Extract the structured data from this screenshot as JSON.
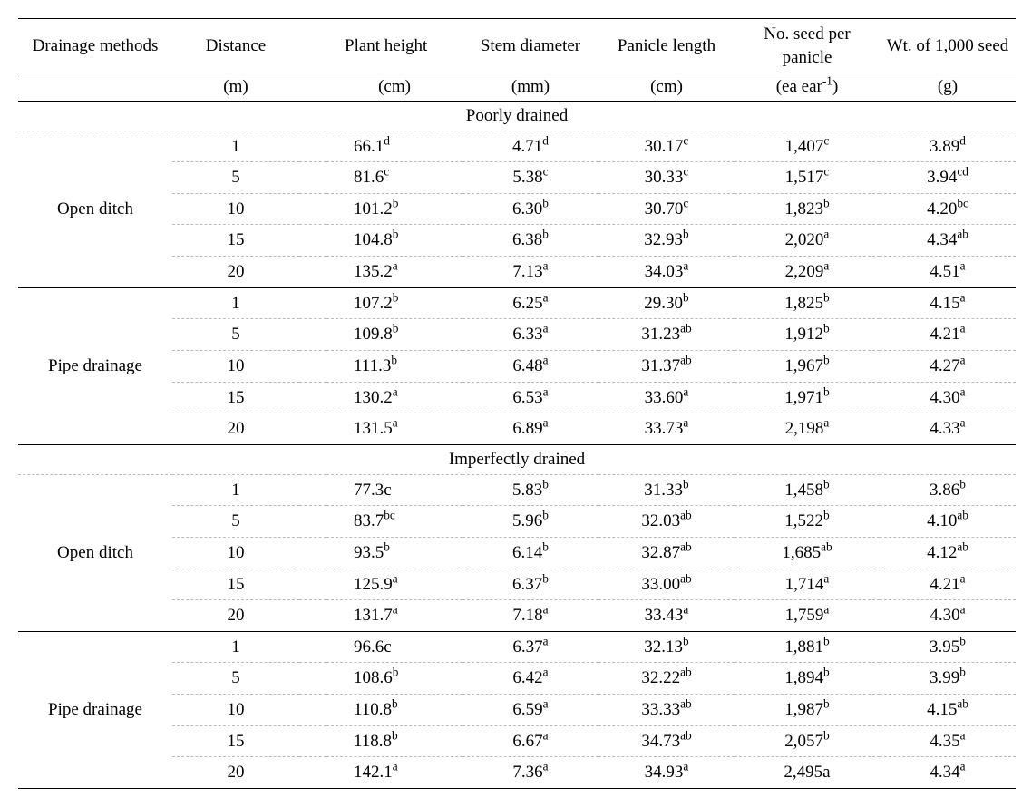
{
  "header": {
    "drainage_methods": "Drainage methods",
    "distance": "Distance",
    "plant_height": "Plant height",
    "stem_diameter": "Stem diameter",
    "panicle_length": "Panicle length",
    "no_seed": "No. seed per panicle",
    "wt_seed": "Wt. of 1,000 seed"
  },
  "units": {
    "distance": "(m)",
    "plant_height": "(cm)",
    "stem_diameter": "(mm)",
    "panicle_length": "(cm)",
    "no_seed_pre": "(ea ear",
    "no_seed_exp": "-1",
    "no_seed_post": ")",
    "wt_seed": "(g)"
  },
  "sections": {
    "poorly": "Poorly drained",
    "imperfectly": "Imperfectly drained"
  },
  "methods": {
    "open": "Open ditch",
    "pipe": "Pipe drainage"
  },
  "rows": {
    "p_open": [
      {
        "d": "1",
        "ph": "66.1",
        "ph_s": "d",
        "sd": "4.71",
        "sd_s": "d",
        "pl": "30.17",
        "pl_s": "c",
        "ns": "1,407",
        "ns_s": "c",
        "wt": "3.89",
        "wt_s": "d"
      },
      {
        "d": "5",
        "ph": "81.6",
        "ph_s": "c",
        "sd": "5.38",
        "sd_s": "c",
        "pl": "30.33",
        "pl_s": "c",
        "ns": "1,517",
        "ns_s": "c",
        "wt": "3.94",
        "wt_s": "cd"
      },
      {
        "d": "10",
        "ph": "101.2",
        "ph_s": "b",
        "sd": "6.30",
        "sd_s": "b",
        "pl": "30.70",
        "pl_s": "c",
        "ns": "1,823",
        "ns_s": "b",
        "wt": "4.20",
        "wt_s": "bc"
      },
      {
        "d": "15",
        "ph": "104.8",
        "ph_s": "b",
        "sd": "6.38",
        "sd_s": "b",
        "pl": "32.93",
        "pl_s": "b",
        "ns": "2,020",
        "ns_s": "a",
        "wt": "4.34",
        "wt_s": "ab"
      },
      {
        "d": "20",
        "ph": "135.2",
        "ph_s": "a",
        "sd": "7.13",
        "sd_s": "a",
        "pl": "34.03",
        "pl_s": "a",
        "ns": "2,209",
        "ns_s": "a",
        "wt": "4.51",
        "wt_s": "a"
      }
    ],
    "p_pipe": [
      {
        "d": "1",
        "ph": "107.2",
        "ph_s": "b",
        "sd": "6.25",
        "sd_s": "a",
        "pl": "29.30",
        "pl_s": "b",
        "ns": "1,825",
        "ns_s": "b",
        "wt": "4.15",
        "wt_s": "a"
      },
      {
        "d": "5",
        "ph": "109.8",
        "ph_s": "b",
        "sd": "6.33",
        "sd_s": "a",
        "pl": "31.23",
        "pl_s": "ab",
        "ns": "1,912",
        "ns_s": "b",
        "wt": "4.21",
        "wt_s": "a"
      },
      {
        "d": "10",
        "ph": "111.3",
        "ph_s": "b",
        "sd": "6.48",
        "sd_s": "a",
        "pl": "31.37",
        "pl_s": "ab",
        "ns": "1,967",
        "ns_s": "b",
        "wt": "4.27",
        "wt_s": "a"
      },
      {
        "d": "15",
        "ph": "130.2",
        "ph_s": "a",
        "sd": "6.53",
        "sd_s": "a",
        "pl": "33.60",
        "pl_s": "a",
        "ns": "1,971",
        "ns_s": "b",
        "wt": "4.30",
        "wt_s": "a"
      },
      {
        "d": "20",
        "ph": "131.5",
        "ph_s": "a",
        "sd": "6.89",
        "sd_s": "a",
        "pl": "33.73",
        "pl_s": "a",
        "ns": "2,198",
        "ns_s": "a",
        "wt": "4.33",
        "wt_s": "a"
      }
    ],
    "i_open": [
      {
        "d": "1",
        "ph": "77.3c",
        "ph_s": "",
        "sd": "5.83",
        "sd_s": "b",
        "pl": "31.33",
        "pl_s": "b",
        "ns": "1,458",
        "ns_s": "b",
        "wt": "3.86",
        "wt_s": "b"
      },
      {
        "d": "5",
        "ph": "83.7",
        "ph_s": "bc",
        "sd": "5.96",
        "sd_s": "b",
        "pl": "32.03",
        "pl_s": "ab",
        "ns": "1,522",
        "ns_s": "b",
        "wt": "4.10",
        "wt_s": "ab"
      },
      {
        "d": "10",
        "ph": "93.5",
        "ph_s": "b",
        "sd": "6.14",
        "sd_s": "b",
        "pl": "32.87",
        "pl_s": "ab",
        "ns": "1,685",
        "ns_s": "ab",
        "wt": "4.12",
        "wt_s": "ab"
      },
      {
        "d": "15",
        "ph": "125.9",
        "ph_s": "a",
        "sd": "6.37",
        "sd_s": "b",
        "pl": "33.00",
        "pl_s": "ab",
        "ns": "1,714",
        "ns_s": "a",
        "wt": "4.21",
        "wt_s": "a"
      },
      {
        "d": "20",
        "ph": "131.7",
        "ph_s": "a",
        "sd": "7.18",
        "sd_s": "a",
        "pl": "33.43",
        "pl_s": "a",
        "ns": "1,759",
        "ns_s": "a",
        "wt": "4.30",
        "wt_s": "a"
      }
    ],
    "i_pipe": [
      {
        "d": "1",
        "ph": "96.6c",
        "ph_s": "",
        "sd": "6.37",
        "sd_s": "a",
        "pl": "32.13",
        "pl_s": "b",
        "ns": "1,881",
        "ns_s": "b",
        "wt": "3.95",
        "wt_s": "b"
      },
      {
        "d": "5",
        "ph": "108.6",
        "ph_s": "b",
        "sd": "6.42",
        "sd_s": "a",
        "pl": "32.22",
        "pl_s": "ab",
        "ns": "1,894",
        "ns_s": "b",
        "wt": "3.99",
        "wt_s": "b"
      },
      {
        "d": "10",
        "ph": "110.8",
        "ph_s": "b",
        "sd": "6.59",
        "sd_s": "a",
        "pl": "33.33",
        "pl_s": "ab",
        "ns": "1,987",
        "ns_s": "b",
        "wt": "4.15",
        "wt_s": "ab"
      },
      {
        "d": "15",
        "ph": "118.8",
        "ph_s": "b",
        "sd": "6.67",
        "sd_s": "a",
        "pl": "34.73",
        "pl_s": "ab",
        "ns": "2,057",
        "ns_s": "b",
        "wt": "4.35",
        "wt_s": "a"
      },
      {
        "d": "20",
        "ph": "142.1",
        "ph_s": "a",
        "sd": "7.36",
        "sd_s": "a",
        "pl": "34.93",
        "pl_s": "a",
        "ns": "2,495a",
        "ns_s": "",
        "wt": "4.34",
        "wt_s": "a"
      }
    ]
  }
}
